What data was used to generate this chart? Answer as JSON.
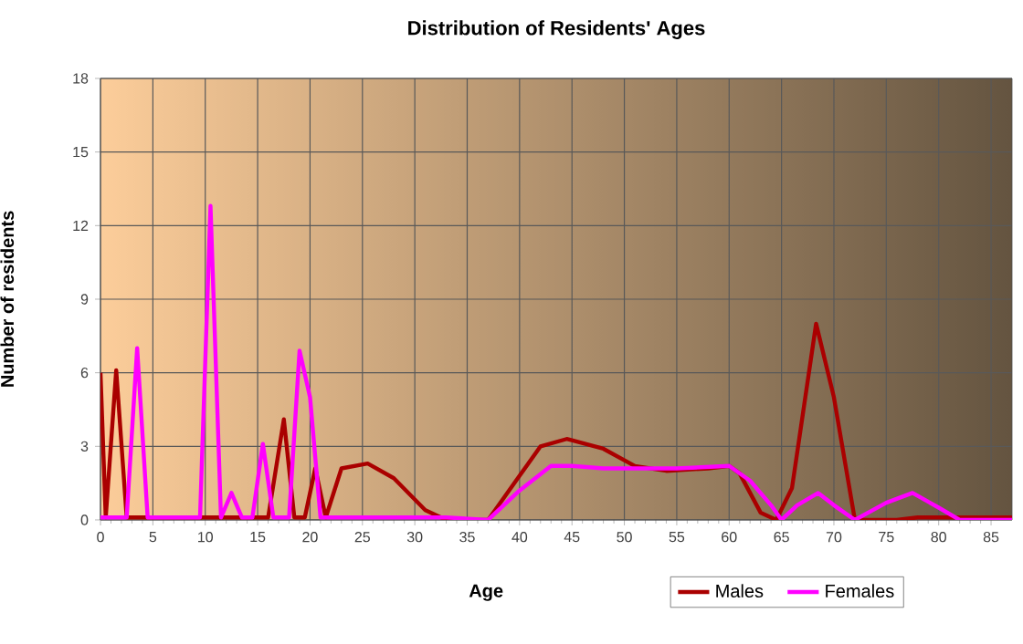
{
  "chart_data": {
    "type": "line",
    "title": "Distribution of Residents' Ages",
    "xlabel": "Age",
    "ylabel": "Number of residents",
    "xlim": [
      0,
      87
    ],
    "xticks": [
      0,
      5,
      10,
      15,
      20,
      25,
      30,
      35,
      40,
      45,
      50,
      55,
      60,
      65,
      70,
      75,
      80,
      85
    ],
    "ylim": [
      0,
      18
    ],
    "yticks": [
      0,
      3,
      6,
      9,
      12,
      15,
      18
    ],
    "grid": true,
    "legend": "bottom right",
    "marker": "none",
    "line_style": "solid",
    "series": [
      {
        "name": "Males",
        "color": "#aa0000",
        "x": [
          0,
          0.5,
          1.5,
          2.5,
          10,
          16,
          17.5,
          18.5,
          19.5,
          20.5,
          21.5,
          23,
          25.5,
          28,
          31,
          33,
          37,
          40,
          42,
          44.5,
          48,
          51,
          54,
          58,
          60,
          61,
          63,
          64.5,
          66,
          68.3,
          70,
          72,
          76,
          78,
          87
        ],
        "values": [
          6,
          0.1,
          6.1,
          0.1,
          0.1,
          0.1,
          4.1,
          0.1,
          0.1,
          2.1,
          0.1,
          2.1,
          2.3,
          1.7,
          0.4,
          0,
          0,
          1.8,
          3,
          3.3,
          2.9,
          2.2,
          2,
          2.1,
          2.2,
          1.9,
          0.3,
          0,
          1.3,
          8,
          5,
          0,
          0,
          0.1,
          0.1
        ]
      },
      {
        "name": "Females",
        "color": "#ff00ff",
        "x": [
          0,
          2.5,
          3.5,
          4.5,
          9.5,
          10.5,
          11.5,
          12.5,
          13.5,
          14.5,
          15.5,
          16.5,
          18,
          19,
          20,
          21,
          33,
          37,
          40,
          43,
          45,
          48,
          55,
          60,
          62,
          64,
          65,
          66.5,
          68.5,
          70,
          72,
          75,
          77.5,
          80,
          82,
          87
        ],
        "values": [
          0.1,
          0.1,
          7,
          0.1,
          0.1,
          12.8,
          0.1,
          1.1,
          0.1,
          0.1,
          3.1,
          0.1,
          0.1,
          6.9,
          5,
          0.1,
          0.1,
          0,
          1.2,
          2.2,
          2.2,
          2.1,
          2.1,
          2.2,
          1.6,
          0.6,
          0,
          0.6,
          1.1,
          0.6,
          0,
          0.7,
          1.1,
          0.5,
          0,
          0
        ]
      }
    ]
  }
}
